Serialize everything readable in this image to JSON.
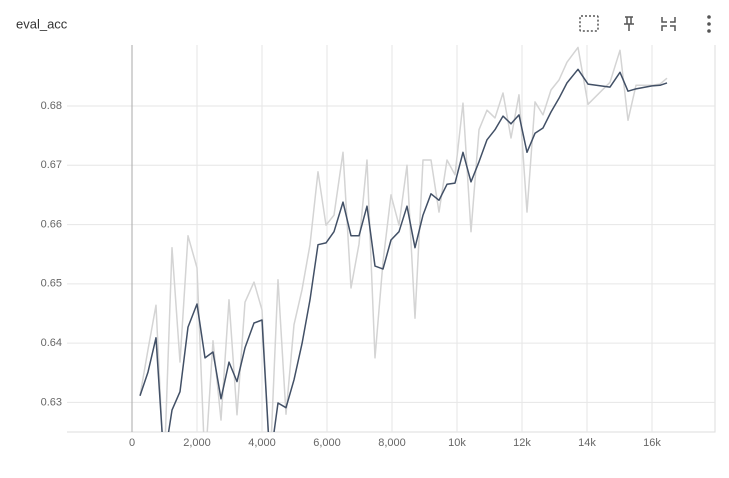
{
  "chart_data": {
    "type": "line",
    "title": "eval_acc",
    "x": [
      246,
      492,
      738,
      985,
      1230,
      1477,
      1723,
      2000,
      2246,
      2492,
      2738,
      2985,
      3231,
      3477,
      3754,
      4000,
      4246,
      4492,
      4738,
      4985,
      5231,
      5477,
      5723,
      5969,
      6215,
      6492,
      6738,
      6985,
      7231,
      7477,
      7723,
      7969,
      8215,
      8462,
      8708,
      8954,
      9200,
      9446,
      9692,
      9938,
      10185,
      10431,
      10677,
      10923,
      11169,
      11415,
      11662,
      11908,
      12154,
      12400,
      12646,
      12892,
      13138,
      13385,
      13723,
      14031,
      14708,
      15015,
      15262,
      15508,
      16000,
      16246,
      16462
    ],
    "series": [
      {
        "color": "#d4d4d4",
        "values": [
          0.6311,
          0.6389,
          0.6464,
          0.618,
          0.6561,
          0.6368,
          0.6581,
          0.6527,
          0.619,
          0.6404,
          0.627,
          0.6473,
          0.6279,
          0.6469,
          0.6503,
          0.6456,
          0.619,
          0.6507,
          0.628,
          0.6431,
          0.649,
          0.6566,
          0.6689,
          0.6599,
          0.6616,
          0.6722,
          0.6493,
          0.6567,
          0.6709,
          0.6375,
          0.6537,
          0.665,
          0.6599,
          0.67,
          0.6442,
          0.6709,
          0.6709,
          0.6621,
          0.6709,
          0.6684,
          0.6805,
          0.6588,
          0.676,
          0.6793,
          0.678,
          0.6822,
          0.6746,
          0.6819,
          0.6621,
          0.6807,
          0.6785,
          0.6827,
          0.6844,
          0.6874,
          0.6899,
          0.6803,
          0.684,
          0.6894,
          0.6776,
          0.6835,
          0.6835,
          0.6837,
          0.6847
        ]
      },
      {
        "color": "#425066",
        "values": [
          0.6311,
          0.6351,
          0.6409,
          0.62,
          0.6287,
          0.6318,
          0.6427,
          0.6466,
          0.6375,
          0.6385,
          0.6306,
          0.6368,
          0.6335,
          0.6392,
          0.6434,
          0.6439,
          0.62,
          0.6299,
          0.6291,
          0.6338,
          0.6399,
          0.6473,
          0.6566,
          0.6569,
          0.6588,
          0.6638,
          0.6581,
          0.6581,
          0.6631,
          0.653,
          0.6525,
          0.6574,
          0.6588,
          0.6631,
          0.6561,
          0.6616,
          0.6652,
          0.6641,
          0.6668,
          0.667,
          0.6722,
          0.6672,
          0.6706,
          0.6743,
          0.676,
          0.6783,
          0.677,
          0.6785,
          0.6722,
          0.6754,
          0.6763,
          0.679,
          0.6813,
          0.6839,
          0.6862,
          0.6837,
          0.6832,
          0.6857,
          0.6825,
          0.6829,
          0.6834,
          0.6835,
          0.6839
        ]
      }
    ],
    "xlim": [
      -2000,
      18000
    ],
    "xticks": [
      0,
      {
        "value": 2000,
        "label": "2,000"
      },
      {
        "value": 4000,
        "label": "4,000"
      },
      {
        "value": 6000,
        "label": "6,000"
      },
      {
        "value": 8000,
        "label": "8,000"
      },
      {
        "value": 10000,
        "label": "10k"
      },
      {
        "value": 12000,
        "label": "12k"
      },
      {
        "value": 14000,
        "label": "14k"
      },
      {
        "value": 16000,
        "label": "16k"
      }
    ],
    "ylim": [
      0.625,
      0.6903
    ],
    "yticks": [
      0.63,
      0.64,
      0.65,
      0.66,
      0.67,
      0.68
    ],
    "grid": true
  }
}
